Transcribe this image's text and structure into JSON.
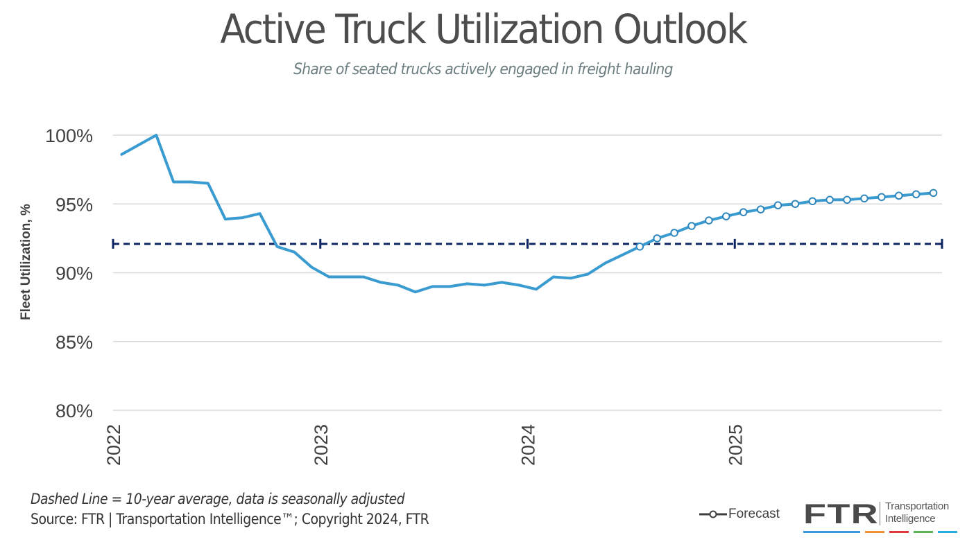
{
  "header": {
    "title": "Active Truck Utilization Outlook",
    "subtitle": "Share of seated trucks actively engaged in freight hauling"
  },
  "footer": {
    "note": "Dashed Line = 10-year average, data is seasonally adjusted",
    "source": "Source: FTR | Transportation Intelligence™; Copyright 2024, FTR"
  },
  "legend": {
    "forecast_label": "Forecast"
  },
  "logo": {
    "brand": "FTR",
    "tagline_line1": "Transportation",
    "tagline_line2": "Intelligence",
    "bar_colors": [
      "#3a9ad9",
      "#f0913a",
      "#e03b3b",
      "#5ab552",
      "#2aaee0"
    ]
  },
  "colors": {
    "series": "#3a9bd0",
    "average": "#0e2563",
    "grid": "#d9d9d9",
    "text": "#404040"
  },
  "chart_data": {
    "type": "line",
    "title": "Active Truck Utilization Outlook",
    "subtitle": "Share of seated trucks actively engaged in freight hauling",
    "xlabel": "",
    "ylabel": "Fleet Utilization, %",
    "ylim": [
      80,
      100
    ],
    "yticks": [
      100,
      95,
      90,
      85,
      80
    ],
    "ytick_labels": [
      "100%",
      "95%",
      "90%",
      "85%",
      "80%"
    ],
    "xtick_labels": [
      "2022",
      "2023",
      "2024",
      "2025"
    ],
    "grid": true,
    "legend_position": "bottom-right",
    "x": [
      "2022-01",
      "2022-02",
      "2022-03",
      "2022-04",
      "2022-05",
      "2022-06",
      "2022-07",
      "2022-08",
      "2022-09",
      "2022-10",
      "2022-11",
      "2022-12",
      "2023-01",
      "2023-02",
      "2023-03",
      "2023-04",
      "2023-05",
      "2023-06",
      "2023-07",
      "2023-08",
      "2023-09",
      "2023-10",
      "2023-11",
      "2023-12",
      "2024-01",
      "2024-02",
      "2024-03",
      "2024-04",
      "2024-05",
      "2024-06",
      "2024-07",
      "2024-08",
      "2024-09",
      "2024-10",
      "2024-11",
      "2024-12",
      "2025-01",
      "2025-02",
      "2025-03",
      "2025-04",
      "2025-05",
      "2025-06",
      "2025-07",
      "2025-08",
      "2025-09",
      "2025-10",
      "2025-11",
      "2025-12"
    ],
    "series": [
      {
        "name": "Fleet Utilization",
        "values": [
          98.6,
          99.3,
          100.0,
          96.6,
          96.6,
          96.5,
          93.9,
          94.0,
          94.3,
          91.9,
          91.5,
          90.4,
          89.7,
          89.7,
          89.7,
          89.3,
          89.1,
          88.6,
          89.0,
          89.0,
          89.2,
          89.1,
          89.3,
          89.1,
          88.8,
          89.7,
          89.6,
          89.9,
          90.7,
          91.3,
          91.9,
          92.5,
          92.9,
          93.4,
          93.8,
          94.1,
          94.4,
          94.6,
          94.9,
          95.0,
          95.2,
          95.3,
          95.3,
          95.4,
          95.5,
          95.6,
          95.7,
          95.8
        ],
        "forecast_start_index": 30
      },
      {
        "name": "10-year average",
        "style": "dashed",
        "constant": 92.1
      }
    ]
  }
}
